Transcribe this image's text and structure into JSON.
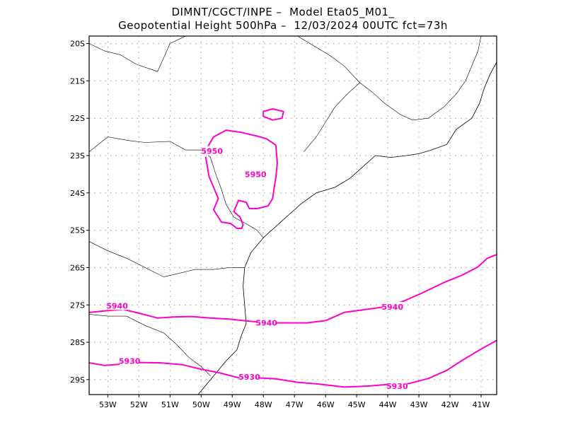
{
  "header": {
    "line1": "DIMNT/CGCT/INPE –  Model Eta05_M01_",
    "line2": "Geopotential Height 500hPa –  12/03/2024 00UTC fct=73h"
  },
  "colors": {
    "contour": "#ff00cc",
    "coast": "#000000",
    "grid": "#999999"
  },
  "map": {
    "lon_min": -53.6,
    "lon_max": -40.5,
    "lat_min": -29.4,
    "lat_max": -19.8,
    "lon_ticks": [
      {
        "v": -53,
        "label": "53W"
      },
      {
        "v": -52,
        "label": "52W"
      },
      {
        "v": -51,
        "label": "51W"
      },
      {
        "v": -50,
        "label": "50W"
      },
      {
        "v": -49,
        "label": "49W"
      },
      {
        "v": -48,
        "label": "48W"
      },
      {
        "v": -47,
        "label": "47W"
      },
      {
        "v": -46,
        "label": "46W"
      },
      {
        "v": -45,
        "label": "45W"
      },
      {
        "v": -44,
        "label": "44W"
      },
      {
        "v": -43,
        "label": "43W"
      },
      {
        "v": -42,
        "label": "42W"
      },
      {
        "v": -41,
        "label": "41W"
      }
    ],
    "lat_ticks": [
      {
        "v": -20,
        "label": "20S"
      },
      {
        "v": -21,
        "label": "21S"
      },
      {
        "v": -22,
        "label": "22S"
      },
      {
        "v": -23,
        "label": "23S"
      },
      {
        "v": -24,
        "label": "24S"
      },
      {
        "v": -25,
        "label": "25S"
      },
      {
        "v": -26,
        "label": "26S"
      },
      {
        "v": -27,
        "label": "27S"
      },
      {
        "v": -28,
        "label": "28S"
      },
      {
        "v": -29,
        "label": "29S"
      }
    ]
  },
  "contours": [
    {
      "value": 5930,
      "label": "5930",
      "closed": false,
      "points": [
        [
          -53.6,
          -28.55
        ],
        [
          -53.1,
          -28.62
        ],
        [
          -52.5,
          -28.58
        ],
        [
          -52.0,
          -28.54
        ],
        [
          -51.3,
          -28.55
        ],
        [
          -50.6,
          -28.6
        ],
        [
          -50.0,
          -28.72
        ],
        [
          -49.4,
          -28.82
        ],
        [
          -48.8,
          -28.95
        ],
        [
          -48.2,
          -28.95
        ],
        [
          -47.6,
          -28.98
        ],
        [
          -46.9,
          -29.07
        ],
        [
          -46.2,
          -29.12
        ],
        [
          -45.4,
          -29.2
        ],
        [
          -44.6,
          -29.17
        ],
        [
          -43.9,
          -29.12
        ],
        [
          -43.3,
          -29.1
        ],
        [
          -42.7,
          -28.97
        ],
        [
          -42.1,
          -28.75
        ],
        [
          -41.6,
          -28.48
        ],
        [
          -41.0,
          -28.18
        ],
        [
          -40.5,
          -27.95
        ]
      ],
      "labels": [
        [
          -52.3,
          -28.5
        ],
        [
          -48.45,
          -28.93
        ],
        [
          -43.7,
          -29.17
        ]
      ]
    },
    {
      "value": 5940,
      "label": "5940",
      "closed": false,
      "points": [
        [
          -53.6,
          -27.2
        ],
        [
          -53.0,
          -27.15
        ],
        [
          -52.5,
          -27.12
        ],
        [
          -52.0,
          -27.22
        ],
        [
          -51.4,
          -27.35
        ],
        [
          -50.9,
          -27.32
        ],
        [
          -50.3,
          -27.31
        ],
        [
          -49.7,
          -27.35
        ],
        [
          -49.1,
          -27.38
        ],
        [
          -48.5,
          -27.43
        ],
        [
          -47.9,
          -27.48
        ],
        [
          -47.3,
          -27.48
        ],
        [
          -46.6,
          -27.48
        ],
        [
          -46.0,
          -27.42
        ],
        [
          -45.4,
          -27.2
        ],
        [
          -44.7,
          -27.12
        ],
        [
          -44.1,
          -27.05
        ],
        [
          -43.5,
          -26.9
        ],
        [
          -42.9,
          -26.68
        ],
        [
          -42.2,
          -26.4
        ],
        [
          -41.6,
          -26.2
        ],
        [
          -41.1,
          -25.98
        ],
        [
          -40.8,
          -25.75
        ],
        [
          -40.5,
          -25.65
        ]
      ],
      "labels": [
        [
          -52.7,
          -27.02
        ],
        [
          -47.9,
          -27.48
        ],
        [
          -43.85,
          -27.05
        ]
      ]
    },
    {
      "value": 5950,
      "label": "5950",
      "closed": false,
      "points": [
        [
          -49.85,
          -22.85
        ],
        [
          -49.6,
          -22.5
        ],
        [
          -49.2,
          -22.32
        ],
        [
          -48.7,
          -22.38
        ],
        [
          -48.2,
          -22.48
        ],
        [
          -47.9,
          -22.55
        ],
        [
          -47.6,
          -22.72
        ],
        [
          -47.55,
          -23.2
        ],
        [
          -47.6,
          -23.6
        ],
        [
          -47.65,
          -23.85
        ],
        [
          -47.7,
          -24.15
        ],
        [
          -47.85,
          -24.35
        ],
        [
          -48.2,
          -24.42
        ],
        [
          -48.45,
          -24.42
        ],
        [
          -48.55,
          -24.25
        ],
        [
          -48.8,
          -24.2
        ],
        [
          -48.95,
          -24.5
        ],
        [
          -48.75,
          -24.65
        ],
        [
          -48.65,
          -24.85
        ],
        [
          -48.7,
          -24.95
        ],
        [
          -48.85,
          -24.95
        ],
        [
          -49.05,
          -24.82
        ],
        [
          -49.35,
          -24.78
        ],
        [
          -49.6,
          -24.45
        ],
        [
          -49.45,
          -24.15
        ],
        [
          -49.6,
          -23.85
        ],
        [
          -49.75,
          -23.55
        ],
        [
          -49.85,
          -23.05
        ]
      ],
      "labels": [
        [
          -49.65,
          -22.88
        ],
        [
          -48.25,
          -23.5
        ]
      ]
    },
    {
      "value": 5950,
      "label": "",
      "closed": true,
      "points": [
        [
          -48.0,
          -21.82
        ],
        [
          -47.7,
          -21.75
        ],
        [
          -47.35,
          -21.82
        ],
        [
          -47.4,
          -22.0
        ],
        [
          -47.7,
          -22.05
        ],
        [
          -48.0,
          -21.95
        ]
      ],
      "labels": []
    }
  ],
  "coastline": [
    [
      [
        -48.0,
        -25.2
      ],
      [
        -48.4,
        -25.6
      ],
      [
        -48.6,
        -26.0
      ],
      [
        -48.65,
        -26.5
      ],
      [
        -48.6,
        -27.0
      ],
      [
        -48.55,
        -27.5
      ],
      [
        -48.7,
        -27.8
      ],
      [
        -48.85,
        -28.2
      ],
      [
        -49.2,
        -28.5
      ],
      [
        -49.6,
        -28.9
      ],
      [
        -49.95,
        -29.25
      ],
      [
        -50.1,
        -29.4
      ]
    ],
    [
      [
        -48.0,
        -25.2
      ],
      [
        -47.6,
        -24.9
      ],
      [
        -47.2,
        -24.6
      ],
      [
        -46.8,
        -24.3
      ],
      [
        -46.3,
        -24.0
      ],
      [
        -45.7,
        -23.85
      ],
      [
        -45.2,
        -23.6
      ],
      [
        -44.8,
        -23.3
      ],
      [
        -44.4,
        -23.0
      ],
      [
        -43.9,
        -23.05
      ],
      [
        -43.4,
        -23.0
      ],
      [
        -43.0,
        -22.95
      ],
      [
        -42.6,
        -22.85
      ],
      [
        -42.1,
        -22.7
      ],
      [
        -41.8,
        -22.3
      ],
      [
        -41.3,
        -22.0
      ],
      [
        -41.05,
        -21.6
      ],
      [
        -40.9,
        -21.2
      ],
      [
        -40.7,
        -20.8
      ],
      [
        -40.5,
        -20.5
      ]
    ]
  ],
  "borders": [
    [
      [
        -53.6,
        -22.9
      ],
      [
        -53.0,
        -22.5
      ],
      [
        -52.3,
        -22.6
      ],
      [
        -51.8,
        -22.65
      ],
      [
        -51.0,
        -22.62
      ],
      [
        -50.5,
        -22.85
      ],
      [
        -49.95,
        -22.85
      ],
      [
        -49.7,
        -23.05
      ],
      [
        -49.55,
        -23.45
      ],
      [
        -49.35,
        -23.9
      ],
      [
        -49.2,
        -24.3
      ],
      [
        -48.95,
        -24.65
      ],
      [
        -48.6,
        -24.8
      ],
      [
        -48.2,
        -25.0
      ],
      [
        -48.0,
        -25.2
      ]
    ],
    [
      [
        -53.6,
        -25.3
      ],
      [
        -53.0,
        -25.55
      ],
      [
        -52.4,
        -25.75
      ],
      [
        -51.8,
        -26.0
      ],
      [
        -51.2,
        -26.25
      ],
      [
        -50.7,
        -26.15
      ],
      [
        -50.2,
        -26.05
      ],
      [
        -49.6,
        -26.05
      ],
      [
        -49.1,
        -26.0
      ],
      [
        -48.6,
        -26.0
      ]
    ],
    [
      [
        -53.6,
        -20.0
      ],
      [
        -53.1,
        -20.2
      ],
      [
        -52.6,
        -20.3
      ],
      [
        -52.1,
        -20.55
      ],
      [
        -51.4,
        -20.75
      ],
      [
        -51.0,
        -20.0
      ],
      [
        -50.5,
        -19.8
      ]
    ],
    [
      [
        -53.6,
        -27.25
      ],
      [
        -53.0,
        -27.3
      ],
      [
        -52.4,
        -27.3
      ],
      [
        -51.8,
        -27.55
      ],
      [
        -51.2,
        -27.75
      ],
      [
        -50.8,
        -28.05
      ],
      [
        -50.4,
        -28.4
      ],
      [
        -50.0,
        -28.65
      ],
      [
        -49.7,
        -28.9
      ]
    ],
    [
      [
        -46.7,
        -22.9
      ],
      [
        -46.3,
        -22.5
      ],
      [
        -46.0,
        -22.1
      ],
      [
        -45.7,
        -21.7
      ],
      [
        -45.3,
        -21.35
      ],
      [
        -44.9,
        -21.05
      ],
      [
        -44.5,
        -21.3
      ],
      [
        -44.1,
        -21.6
      ],
      [
        -43.6,
        -21.9
      ],
      [
        -43.2,
        -22.05
      ],
      [
        -42.7,
        -22.0
      ],
      [
        -42.2,
        -21.7
      ],
      [
        -41.8,
        -21.35
      ],
      [
        -41.5,
        -21.0
      ],
      [
        -41.3,
        -20.6
      ],
      [
        -41.1,
        -20.2
      ],
      [
        -41.0,
        -19.8
      ]
    ],
    [
      [
        -44.9,
        -21.05
      ],
      [
        -45.4,
        -20.6
      ],
      [
        -45.9,
        -20.3
      ],
      [
        -46.4,
        -20.05
      ],
      [
        -46.9,
        -19.8
      ]
    ]
  ]
}
